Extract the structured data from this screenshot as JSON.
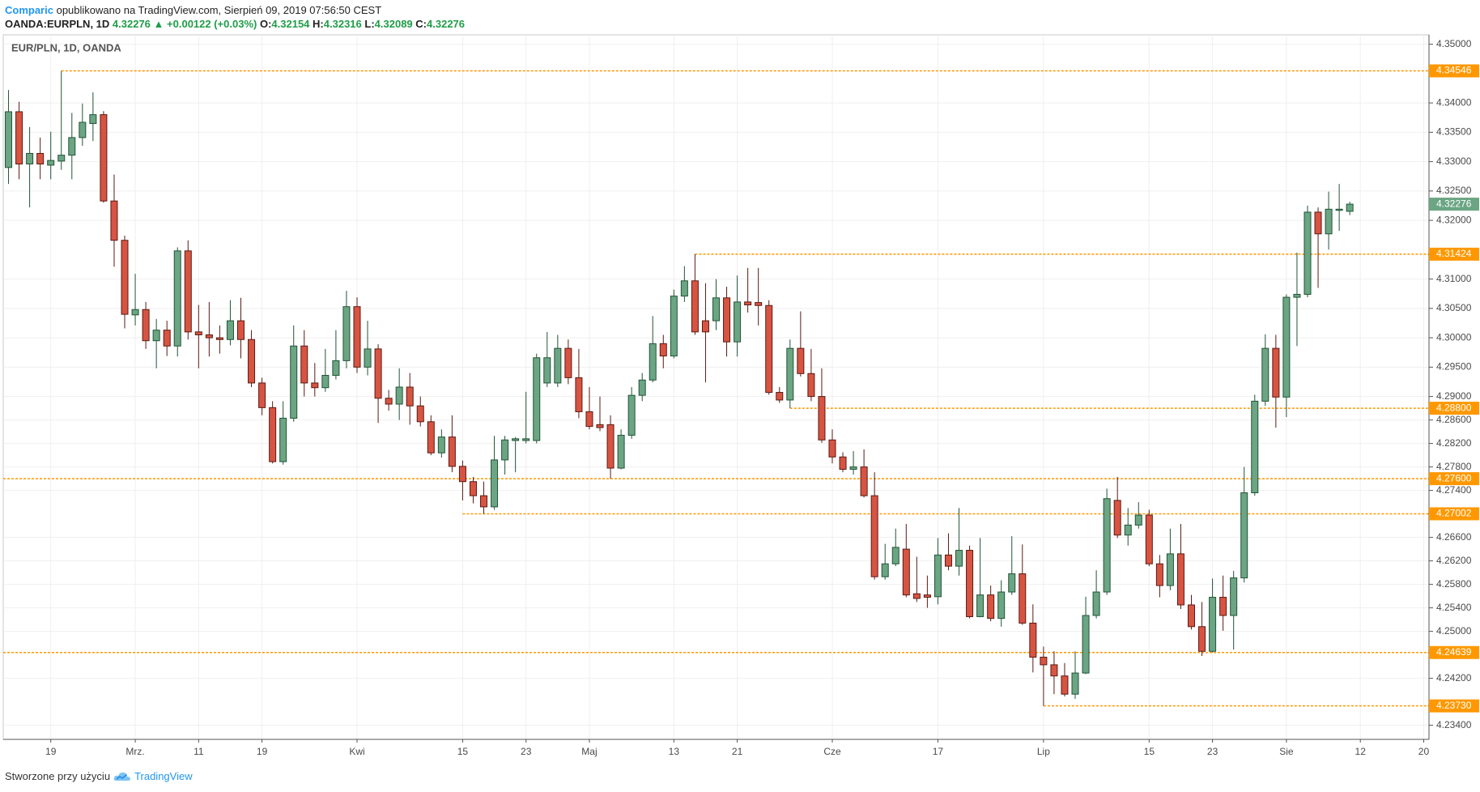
{
  "header": {
    "publisher": "Comparic",
    "published": "opublikowano na TradingView.com, Sierpień 09, 2019 07:56:50 CEST",
    "symbol": "OANDA:EURPLN, 1D",
    "last": "4.32276",
    "change": "▲ +0.00122 (+0.03%)",
    "ohlc": [
      {
        "label": "O:",
        "value": "4.32154"
      },
      {
        "label": "H:",
        "value": "4.32316"
      },
      {
        "label": "L:",
        "value": "4.32089"
      },
      {
        "label": "C:",
        "value": "4.32276"
      }
    ]
  },
  "chart_data": {
    "type": "candlestick",
    "title": "EUR/PLN, 1D, OANDA",
    "up_color": "#6ba583",
    "up_border": "#225437",
    "down_color": "#d75442",
    "down_border": "#5b1a13",
    "level_color": "#ff9800",
    "grid": true,
    "categories": [
      null,
      null,
      null,
      null,
      "19",
      null,
      null,
      null,
      null,
      null,
      null,
      null,
      "Mrz.",
      null,
      null,
      null,
      null,
      null,
      "11",
      null,
      null,
      null,
      null,
      null,
      "19",
      null,
      null,
      null,
      null,
      null,
      null,
      null,
      null,
      "Kwi",
      null,
      null,
      null,
      null,
      null,
      null,
      null,
      null,
      null,
      "15",
      null,
      null,
      null,
      null,
      null,
      "23",
      null,
      null,
      null,
      null,
      null,
      "Maj",
      null,
      null,
      null,
      null,
      null,
      null,
      null,
      "13",
      null,
      null,
      null,
      null,
      null,
      "21",
      null,
      null,
      null,
      null,
      null,
      null,
      null,
      null,
      "Cze",
      null,
      null,
      null,
      null,
      null,
      null,
      null,
      null,
      null,
      "17",
      null,
      null,
      null,
      null,
      null,
      null,
      null,
      null,
      null,
      "Lip",
      null,
      null,
      null,
      null,
      null,
      null,
      null,
      null,
      null,
      "15",
      null,
      null,
      null,
      null,
      null,
      "23",
      null,
      null,
      null,
      null,
      null,
      null,
      "Sie",
      null,
      null,
      null,
      null,
      null,
      null,
      "12",
      null,
      null,
      null,
      null,
      null,
      "20"
    ],
    "open": [
      4.329,
      4.3385,
      4.3296,
      4.3314,
      4.3294,
      4.3301,
      4.3311,
      4.3341,
      4.3365,
      4.338,
      4.3233,
      4.3166,
      4.3039,
      4.3048,
      4.2995,
      4.3013,
      4.2986,
      4.3148,
      4.301,
      4.3005,
      4.3,
      4.2997,
      4.3029,
      4.2997,
      4.2923,
      4.2881,
      4.2789,
      4.2863,
      4.2986,
      4.2923,
      4.2915,
      4.2936,
      4.2961,
      4.3053,
      4.295,
      4.2981,
      4.2897,
      4.2887,
      4.2916,
      4.2884,
      4.2857,
      4.2804,
      4.2831,
      4.2781,
      4.2755,
      4.2731,
      4.2712,
      4.2792,
      4.2825,
      4.2825,
      4.2825,
      4.2923,
      4.2923,
      4.2982,
      4.2932,
      4.2874,
      4.2852,
      4.2852,
      4.2778,
      4.2834,
      4.2902,
      4.2928,
      4.299,
      4.2969,
      4.3071,
      4.3097,
      4.3029,
      4.3029,
      4.3068,
      4.2993,
      4.3061,
      4.306,
      4.3055,
      4.2907,
      4.2894,
      4.2982,
      4.2939,
      4.29,
      4.2826,
      4.2797,
      4.2776,
      4.278,
      4.2731,
      4.2593,
      4.2615,
      4.264,
      4.2564,
      4.2562,
      4.2559,
      4.263,
      4.2611,
      4.2638,
      4.2525,
      4.2562,
      4.2522,
      4.2567,
      4.2598,
      4.2514,
      4.2456,
      4.2443,
      4.2424,
      4.2393,
      4.2429,
      4.2527,
      4.2567,
      4.2723,
      4.2664,
      4.2681,
      4.2698,
      4.2615,
      4.2578,
      4.2632,
      4.2545,
      4.2508,
      4.2466,
      4.2558,
      4.2527,
      4.2591,
      4.2736,
      4.2892,
      4.2982,
      4.2899,
      4.3069,
      4.3074,
      4.3214,
      4.3177,
      4.3217,
      4.32154,
      null,
      null,
      null,
      null,
      null,
      null,
      null
    ],
    "high": [
      4.3422,
      4.3402,
      4.3359,
      4.3341,
      4.3351,
      4.34546,
      4.3383,
      4.3399,
      4.3418,
      4.3386,
      4.3278,
      4.3174,
      4.3109,
      4.3061,
      4.3032,
      4.3029,
      4.3154,
      4.3166,
      4.3056,
      4.3061,
      4.3021,
      4.3064,
      4.3068,
      4.3013,
      4.2932,
      4.2892,
      4.2892,
      4.3021,
      4.3013,
      4.2957,
      4.2981,
      4.3013,
      4.308,
      4.3069,
      4.3029,
      4.2989,
      4.2911,
      4.2948,
      4.294,
      4.29,
      4.2868,
      4.2844,
      4.2868,
      4.2791,
      4.2763,
      4.2755,
      4.2833,
      4.2833,
      4.2831,
      4.2908,
      4.2973,
      4.301,
      4.3005,
      4.2997,
      4.2981,
      4.2916,
      4.29,
      4.2868,
      4.2844,
      4.2916,
      4.294,
      4.3037,
      4.3005,
      4.3082,
      4.3122,
      4.31424,
      4.3093,
      4.31,
      4.3087,
      4.3106,
      4.3119,
      4.3119,
      4.3064,
      4.2916,
      4.2997,
      4.3045,
      4.2981,
      4.2948,
      4.2844,
      4.2805,
      4.2807,
      4.281,
      4.2771,
      4.2649,
      4.2675,
      4.2683,
      4.2627,
      4.2595,
      4.2659,
      4.2667,
      4.271,
      4.2646,
      4.2659,
      4.2578,
      4.2587,
      4.2662,
      4.2648,
      4.2546,
      4.2474,
      4.2466,
      4.2446,
      4.2466,
      4.2559,
      4.2604,
      4.2743,
      4.2763,
      4.271,
      4.272,
      4.2707,
      4.263,
      4.2675,
      4.2683,
      4.2562,
      4.255,
      4.259,
      4.2595,
      4.2603,
      4.278,
      4.2903,
      4.3006,
      4.3005,
      4.3074,
      4.3145,
      4.3225,
      4.3222,
      4.3249,
      4.3262,
      4.32316,
      null,
      null,
      null,
      null,
      null,
      null,
      null
    ],
    "low": [
      4.3262,
      4.327,
      4.3222,
      4.327,
      4.327,
      4.3286,
      4.327,
      4.3327,
      4.3335,
      4.323,
      4.3121,
      4.3016,
      4.3021,
      4.2981,
      4.2948,
      4.2969,
      4.2968,
      4.2997,
      4.2948,
      4.2968,
      4.2973,
      4.2987,
      4.2965,
      4.2916,
      4.2868,
      4.2786,
      4.2784,
      4.2857,
      4.29,
      4.29,
      4.2908,
      4.2929,
      4.2948,
      4.294,
      4.2936,
      4.2855,
      4.2876,
      4.286,
      4.2852,
      4.2849,
      4.28,
      4.2796,
      4.2771,
      4.2723,
      4.2718,
      4.27002,
      4.2707,
      4.2767,
      4.2771,
      4.282,
      4.282,
      4.2916,
      4.2916,
      4.2921,
      4.2863,
      4.2844,
      4.2841,
      4.276,
      4.2776,
      4.2828,
      4.2892,
      4.2924,
      4.2948,
      4.2965,
      4.3061,
      4.3005,
      4.2924,
      4.3013,
      4.2968,
      4.2968,
      4.3043,
      4.3021,
      4.2903,
      4.2889,
      4.288,
      4.2934,
      4.2892,
      4.2821,
      4.2786,
      4.2771,
      4.2767,
      4.2728,
      4.2588,
      4.2588,
      4.2611,
      4.2558,
      4.255,
      4.254,
      4.2546,
      4.2604,
      4.2595,
      4.2522,
      4.2524,
      4.2517,
      4.2508,
      4.2562,
      4.2511,
      4.243,
      4.2373,
      4.2393,
      4.2389,
      4.2385,
      4.2427,
      4.2522,
      4.2562,
      4.2659,
      4.2646,
      4.2675,
      4.2611,
      4.2558,
      4.257,
      4.2538,
      4.2503,
      4.2458,
      4.24639,
      4.2501,
      4.2469,
      4.2583,
      4.2731,
      4.2884,
      4.2847,
      4.2865,
      4.2986,
      4.3069,
      4.3085,
      4.315,
      4.3182,
      4.32089,
      null,
      null,
      null,
      null,
      null,
      null,
      null
    ],
    "close": [
      4.3385,
      4.3296,
      4.3314,
      4.3296,
      4.3302,
      4.3311,
      4.3341,
      4.3367,
      4.338,
      4.3233,
      4.3166,
      4.304,
      4.3048,
      4.2995,
      4.3013,
      4.2986,
      4.3148,
      4.301,
      4.3005,
      4.3,
      4.2997,
      4.3029,
      4.2997,
      4.2923,
      4.2881,
      4.2789,
      4.2863,
      4.2986,
      4.2923,
      4.2915,
      4.2936,
      4.2961,
      4.3053,
      4.295,
      4.2981,
      4.2897,
      4.2887,
      4.2916,
      4.2884,
      4.2857,
      4.2804,
      4.2831,
      4.2781,
      4.2755,
      4.2731,
      4.2712,
      4.2792,
      4.2826,
      4.2828,
      4.2828,
      4.2966,
      4.2966,
      4.2982,
      4.2932,
      4.2874,
      4.2849,
      4.2847,
      4.2778,
      4.2834,
      4.2902,
      4.2928,
      4.299,
      4.2969,
      4.3071,
      4.3097,
      4.301,
      4.301,
      4.3068,
      4.2993,
      4.3061,
      4.3056,
      4.3055,
      4.2907,
      4.2894,
      4.2982,
      4.2939,
      4.29,
      4.2826,
      4.2797,
      4.2776,
      4.278,
      4.2731,
      4.2593,
      4.2615,
      4.2643,
      4.2562,
      4.2556,
      4.2558,
      4.263,
      4.2611,
      4.2638,
      4.2525,
      4.2562,
      4.2522,
      4.2567,
      4.2598,
      4.2514,
      4.2456,
      4.2443,
      4.2424,
      4.2393,
      4.2429,
      4.2527,
      4.2567,
      4.2726,
      4.2664,
      4.2681,
      4.2698,
      4.2615,
      4.2578,
      4.2632,
      4.2545,
      4.2508,
      4.2466,
      4.2558,
      4.2527,
      4.2591,
      4.2736,
      4.2892,
      4.2982,
      4.2899,
      4.3069,
      4.3074,
      4.3214,
      4.3177,
      4.3219,
      4.3219,
      4.32276,
      null,
      null,
      null,
      null,
      null,
      null,
      null
    ],
    "ylim": [
      4.2316,
      4.3516
    ],
    "yticks": [
      {
        "value": 4.35,
        "label": "4.35000"
      },
      {
        "value": 4.34,
        "label": "4.34000"
      },
      {
        "value": 4.335,
        "label": "4.33500"
      },
      {
        "value": 4.33,
        "label": "4.33000"
      },
      {
        "value": 4.325,
        "label": "4.32500"
      },
      {
        "value": 4.32,
        "label": "4.32000"
      },
      {
        "value": 4.31,
        "label": "4.31000"
      },
      {
        "value": 4.305,
        "label": "4.30500"
      },
      {
        "value": 4.3,
        "label": "4.30000"
      },
      {
        "value": 4.295,
        "label": "4.29500"
      },
      {
        "value": 4.29,
        "label": "4.29000"
      },
      {
        "value": 4.286,
        "label": "4.28600"
      },
      {
        "value": 4.282,
        "label": "4.28200"
      },
      {
        "value": 4.278,
        "label": "4.27800"
      },
      {
        "value": 4.274,
        "label": "4.27400"
      },
      {
        "value": 4.266,
        "label": "4.26600"
      },
      {
        "value": 4.262,
        "label": "4.26200"
      },
      {
        "value": 4.258,
        "label": "4.25800"
      },
      {
        "value": 4.254,
        "label": "4.25400"
      },
      {
        "value": 4.25,
        "label": "4.25000"
      },
      {
        "value": 4.242,
        "label": "4.24200"
      },
      {
        "value": 4.234,
        "label": "4.23400"
      }
    ],
    "levels": [
      4.34546,
      4.31424,
      {
        "value": 4.288,
        "label": "4.28800"
      },
      {
        "value": 4.276,
        "label": "4.27600"
      },
      4.27002,
      4.24639,
      {
        "value": 4.2373,
        "label": "4.23730"
      }
    ]
  },
  "footer": {
    "text": "Stworzone przy użyciu",
    "brand": "TradingView"
  }
}
